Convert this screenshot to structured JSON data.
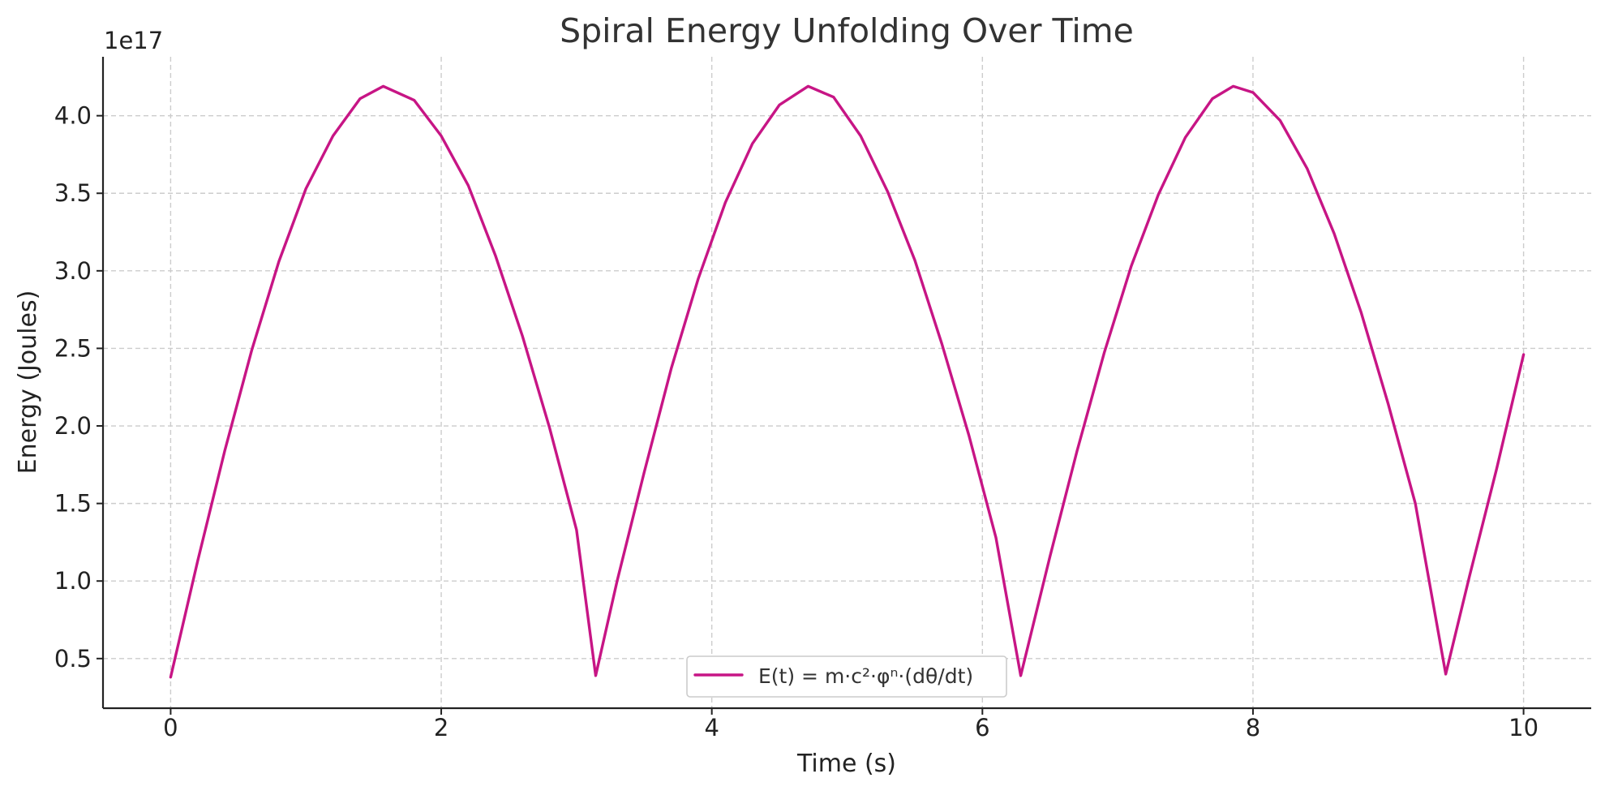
{
  "chart_data": {
    "type": "line",
    "title": "Spiral Energy Unfolding Over Time",
    "xlabel": "Time (s)",
    "ylabel": "Energy (Joules)",
    "y_offset_text": "1e17",
    "xlim": [
      -0.5,
      10.5
    ],
    "ylim": [
      0.18,
      4.38
    ],
    "y_scale_factor": 1e+17,
    "x_ticks": [
      0,
      2,
      4,
      6,
      8,
      10
    ],
    "x_tick_labels": [
      "0",
      "2",
      "4",
      "6",
      "8",
      "10"
    ],
    "y_ticks": [
      0.5,
      1.0,
      1.5,
      2.0,
      2.5,
      3.0,
      3.5,
      4.0
    ],
    "y_tick_labels": [
      "0.5",
      "1.0",
      "1.5",
      "2.0",
      "2.5",
      "3.0",
      "3.5",
      "4.0"
    ],
    "grid": true,
    "legend_position": "lower-center",
    "series": [
      {
        "name": "E(t) = m·c²·φⁿ·(dθ/dt)",
        "color": "#c71585",
        "x": [
          0.0,
          0.2,
          0.4,
          0.6,
          0.8,
          1.0,
          1.2,
          1.4,
          1.571,
          1.8,
          2.0,
          2.2,
          2.4,
          2.6,
          2.8,
          3.0,
          3.1416,
          3.3,
          3.5,
          3.7,
          3.9,
          4.1,
          4.3,
          4.5,
          4.712,
          4.9,
          5.1,
          5.3,
          5.5,
          5.7,
          5.9,
          6.1,
          6.2832,
          6.5,
          6.7,
          6.9,
          7.1,
          7.3,
          7.5,
          7.7,
          7.854,
          8.0,
          8.2,
          8.4,
          8.6,
          8.8,
          9.0,
          9.2,
          9.4248,
          9.6,
          9.8,
          10.0
        ],
        "values": [
          0.38,
          1.13,
          1.84,
          2.49,
          3.06,
          3.53,
          3.87,
          4.11,
          4.19,
          4.1,
          3.87,
          3.55,
          3.1,
          2.58,
          1.99,
          1.33,
          0.39,
          1.0,
          1.7,
          2.37,
          2.95,
          3.44,
          3.82,
          4.07,
          4.19,
          4.12,
          3.87,
          3.51,
          3.07,
          2.53,
          1.94,
          1.28,
          0.39,
          1.16,
          1.84,
          2.47,
          3.03,
          3.49,
          3.86,
          4.11,
          4.19,
          4.15,
          3.97,
          3.66,
          3.24,
          2.73,
          2.14,
          1.5,
          0.4,
          1.03,
          1.72,
          2.46
        ]
      }
    ]
  }
}
